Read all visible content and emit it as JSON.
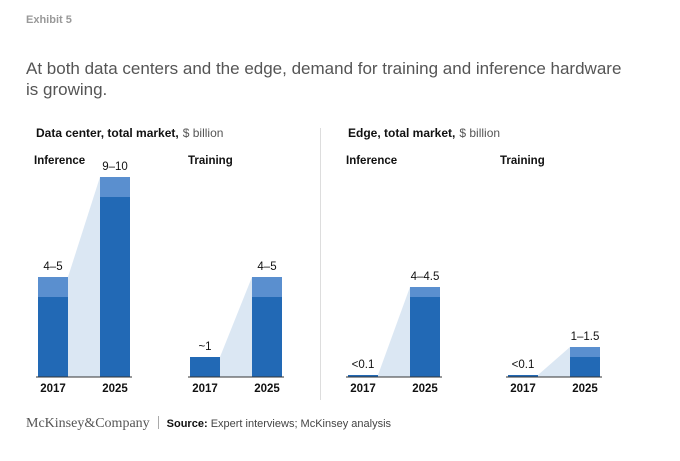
{
  "exhibit": "Exhibit 5",
  "headline": "At both data centers and the edge, demand for training and inference hardware is growing.",
  "footer": {
    "logo": "McKinsey&Company",
    "source_label": "Source:",
    "source_text": "Expert interviews; McKinsey analysis"
  },
  "colors": {
    "bar": "#2269b5",
    "bar_top": "#5a8fcf",
    "connector": "#dbe7f3",
    "baseline": "#333333"
  },
  "chart_data": [
    {
      "type": "bar",
      "title": "Data center, total market,",
      "unit": "$ billion",
      "groups": [
        {
          "name": "Inference",
          "categories": [
            "2017",
            "2025"
          ],
          "ranges": [
            [
              4,
              5
            ],
            [
              9,
              10
            ]
          ],
          "labels": [
            "4–5",
            "9–10"
          ]
        },
        {
          "name": "Training",
          "categories": [
            "2017",
            "2025"
          ],
          "ranges": [
            [
              1,
              1
            ],
            [
              4,
              5
            ]
          ],
          "labels": [
            "~1",
            "4–5"
          ]
        }
      ]
    },
    {
      "type": "bar",
      "title": "Edge, total market,",
      "unit": "$ billion",
      "groups": [
        {
          "name": "Inference",
          "categories": [
            "2017",
            "2025"
          ],
          "ranges": [
            [
              0.1,
              0.1
            ],
            [
              4,
              4.5
            ]
          ],
          "labels": [
            "<0.1",
            "4–4.5"
          ]
        },
        {
          "name": "Training",
          "categories": [
            "2017",
            "2025"
          ],
          "ranges": [
            [
              0.1,
              0.1
            ],
            [
              1,
              1.5
            ]
          ],
          "labels": [
            "<0.1",
            "1–1.5"
          ]
        }
      ]
    }
  ]
}
